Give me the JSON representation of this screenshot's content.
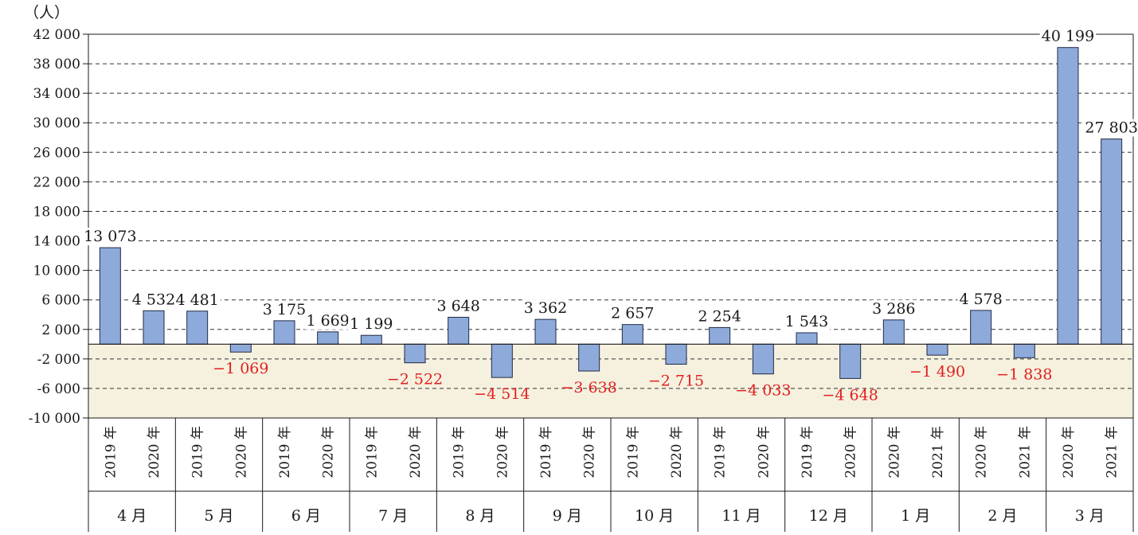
{
  "chart_data": {
    "type": "bar",
    "ylabel": "（人）",
    "ylim": [
      -10000,
      42000
    ],
    "yticks": [
      42000,
      38000,
      34000,
      30000,
      26000,
      22000,
      18000,
      14000,
      10000,
      6000,
      2000,
      -2000,
      -6000,
      -10000
    ],
    "ytick_labels": [
      "42 000",
      "38 000",
      "34 000",
      "30 000",
      "26 000",
      "22 000",
      "18 000",
      "14 000",
      "10 000",
      "6 000",
      "2 000",
      "-2 000",
      "-6 000",
      "-10 000"
    ],
    "grid": true,
    "colors": {
      "bar": "#8eaadb",
      "bar_stroke": "#1f2a44",
      "negative_label": "#e02020",
      "positive_label": "#1a1a1a",
      "negative_band": "#f6f1df"
    },
    "groups": [
      {
        "label": "4 月",
        "bars": [
          {
            "year": "2019 年",
            "value": 13073,
            "label": "13 073"
          },
          {
            "year": "2020 年",
            "value": 4532,
            "label": "4 532"
          }
        ]
      },
      {
        "label": "5 月",
        "bars": [
          {
            "year": "2019 年",
            "value": 4481,
            "label": "4 481"
          },
          {
            "year": "2020 年",
            "value": -1069,
            "label": "−1 069"
          }
        ]
      },
      {
        "label": "6 月",
        "bars": [
          {
            "year": "2019 年",
            "value": 3175,
            "label": "3 175"
          },
          {
            "year": "2020 年",
            "value": 1669,
            "label": "1 669"
          }
        ]
      },
      {
        "label": "7 月",
        "bars": [
          {
            "year": "2019 年",
            "value": 1199,
            "label": "1 199"
          },
          {
            "year": "2020 年",
            "value": -2522,
            "label": "−2 522"
          }
        ]
      },
      {
        "label": "8 月",
        "bars": [
          {
            "year": "2019 年",
            "value": 3648,
            "label": "3 648"
          },
          {
            "year": "2020 年",
            "value": -4514,
            "label": "−4 514"
          }
        ]
      },
      {
        "label": "9 月",
        "bars": [
          {
            "year": "2019 年",
            "value": 3362,
            "label": "3 362"
          },
          {
            "year": "2020 年",
            "value": -3638,
            "label": "−3 638"
          }
        ]
      },
      {
        "label": "10 月",
        "bars": [
          {
            "year": "2019 年",
            "value": 2657,
            "label": "2 657"
          },
          {
            "year": "2020 年",
            "value": -2715,
            "label": "−2 715"
          }
        ]
      },
      {
        "label": "11 月",
        "bars": [
          {
            "year": "2019 年",
            "value": 2254,
            "label": "2 254"
          },
          {
            "year": "2020 年",
            "value": -4033,
            "label": "−4 033"
          }
        ]
      },
      {
        "label": "12 月",
        "bars": [
          {
            "year": "2019 年",
            "value": 1543,
            "label": "1 543"
          },
          {
            "year": "2020 年",
            "value": -4648,
            "label": "−4 648"
          }
        ]
      },
      {
        "label": "1 月",
        "bars": [
          {
            "year": "2020 年",
            "value": 3286,
            "label": "3 286"
          },
          {
            "year": "2021 年",
            "value": -1490,
            "label": "−1 490"
          }
        ]
      },
      {
        "label": "2 月",
        "bars": [
          {
            "year": "2020 年",
            "value": 4578,
            "label": "4 578"
          },
          {
            "year": "2021 年",
            "value": -1838,
            "label": "−1 838"
          }
        ]
      },
      {
        "label": "3 月",
        "bars": [
          {
            "year": "2020 年",
            "value": 40199,
            "label": "40 199"
          },
          {
            "year": "2021 年",
            "value": 27803,
            "label": "27 803"
          }
        ]
      }
    ]
  }
}
